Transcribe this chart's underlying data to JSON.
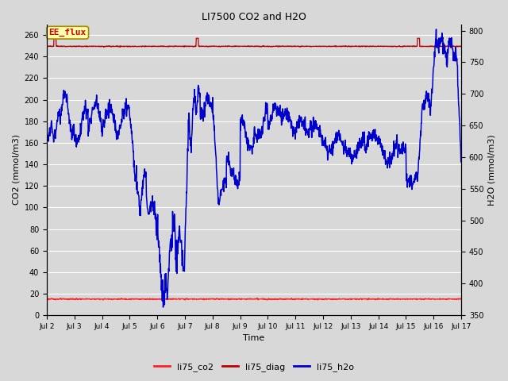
{
  "title": "LI7500 CO2 and H2O",
  "xlabel": "Time",
  "ylabel_left": "CO2 (mmol/m3)",
  "ylabel_right": "H2O (mmol/m3)",
  "xlim": [
    0,
    15
  ],
  "ylim_left": [
    0,
    270
  ],
  "ylim_right": [
    350,
    810
  ],
  "xtick_labels": [
    "Jul 2",
    "Jul 3",
    "Jul 4",
    "Jul 5",
    "Jul 6",
    "Jul 7",
    "Jul 8",
    "Jul 9",
    "Jul 10",
    "Jul 11",
    "Jul 12",
    "Jul 13",
    "Jul 14",
    "Jul 15",
    "Jul 16",
    "Jul 17"
  ],
  "yticks_left": [
    0,
    20,
    40,
    60,
    80,
    100,
    120,
    140,
    160,
    180,
    200,
    220,
    240,
    260
  ],
  "yticks_right": [
    350,
    400,
    450,
    500,
    550,
    600,
    650,
    700,
    750,
    800
  ],
  "bg_color": "#d8d8d8",
  "plot_bg_color": "#d8d8d8",
  "grid_color": "#ffffff",
  "ee_flux_label": "EE_flux",
  "ee_flux_bg": "#ffffaa",
  "ee_flux_border": "#aa8800",
  "ee_flux_text_color": "#cc0000",
  "legend_entries": [
    "li75_co2",
    "li75_diag",
    "li75_h2o"
  ],
  "co2_color": "#ff2222",
  "diag_color": "#bb0000",
  "h2o_color": "#0000cc",
  "diag_line_value": 249.5,
  "co2_line_value": 15.0,
  "diag_spike1_t": 0.3,
  "diag_spike2_t": 5.45,
  "diag_spike3_t": 13.45,
  "figsize": [
    6.4,
    4.8
  ],
  "dpi": 100
}
